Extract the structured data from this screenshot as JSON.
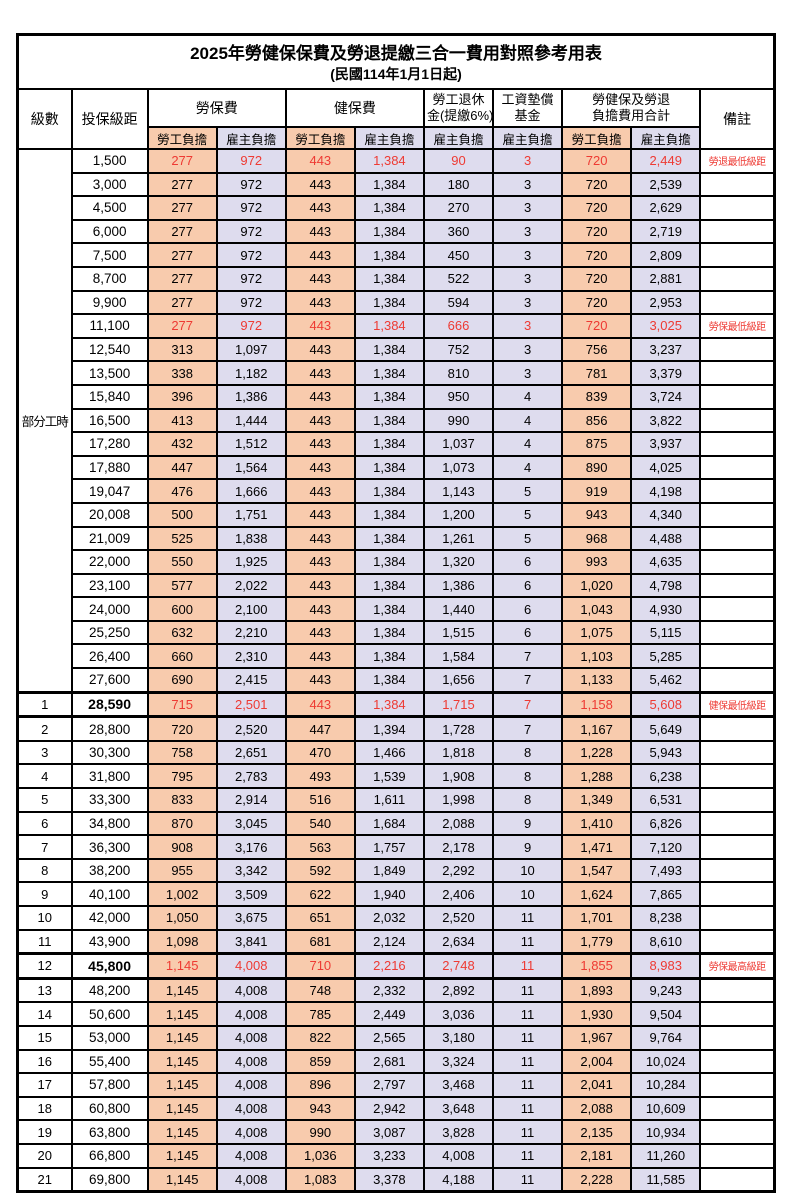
{
  "title": "2025年勞健保保費及勞退提繳三合一費用對照參考用表",
  "subtitle": "(民國114年1月1日起)",
  "header": {
    "level": "級數",
    "bracket": "投保級距",
    "labor_insurance": "勞保費",
    "health_insurance": "健保費",
    "pension_line1": "勞工退休",
    "pension_line2": "金(提繳6%)",
    "wage_fund_line1": "工資墊償",
    "wage_fund_line2": "基金",
    "total_line1": "勞健保及勞退",
    "total_line2": "負擔費用合計",
    "employee": "勞工負擔",
    "employer": "雇主負擔",
    "remark": "備註"
  },
  "part_time_label": "部分工時",
  "part_time_rowspan": 23,
  "colors": {
    "employee_bg": "#F8CBAD",
    "employer_bg": "#DEDCEE",
    "highlight_red": "#EE3A33",
    "border": "#000000"
  },
  "rows": [
    {
      "level": "",
      "v": [
        "1,500",
        "277",
        "972",
        "443",
        "1,384",
        "90",
        "3",
        "720",
        "2,449"
      ],
      "remark": "勞退最低級距",
      "red": true,
      "thick": false,
      "bold": false
    },
    {
      "level": "",
      "v": [
        "3,000",
        "277",
        "972",
        "443",
        "1,384",
        "180",
        "3",
        "720",
        "2,539"
      ],
      "remark": "",
      "red": false,
      "thick": false,
      "bold": false
    },
    {
      "level": "",
      "v": [
        "4,500",
        "277",
        "972",
        "443",
        "1,384",
        "270",
        "3",
        "720",
        "2,629"
      ],
      "remark": "",
      "red": false,
      "thick": false,
      "bold": false
    },
    {
      "level": "",
      "v": [
        "6,000",
        "277",
        "972",
        "443",
        "1,384",
        "360",
        "3",
        "720",
        "2,719"
      ],
      "remark": "",
      "red": false,
      "thick": false,
      "bold": false
    },
    {
      "level": "",
      "v": [
        "7,500",
        "277",
        "972",
        "443",
        "1,384",
        "450",
        "3",
        "720",
        "2,809"
      ],
      "remark": "",
      "red": false,
      "thick": false,
      "bold": false
    },
    {
      "level": "",
      "v": [
        "8,700",
        "277",
        "972",
        "443",
        "1,384",
        "522",
        "3",
        "720",
        "2,881"
      ],
      "remark": "",
      "red": false,
      "thick": false,
      "bold": false
    },
    {
      "level": "",
      "v": [
        "9,900",
        "277",
        "972",
        "443",
        "1,384",
        "594",
        "3",
        "720",
        "2,953"
      ],
      "remark": "",
      "red": false,
      "thick": false,
      "bold": false
    },
    {
      "level": "",
      "v": [
        "11,100",
        "277",
        "972",
        "443",
        "1,384",
        "666",
        "3",
        "720",
        "3,025"
      ],
      "remark": "勞保最低級距",
      "red": true,
      "thick": false,
      "bold": false
    },
    {
      "level": "",
      "v": [
        "12,540",
        "313",
        "1,097",
        "443",
        "1,384",
        "752",
        "3",
        "756",
        "3,237"
      ],
      "remark": "",
      "red": false,
      "thick": false,
      "bold": false
    },
    {
      "level": "",
      "v": [
        "13,500",
        "338",
        "1,182",
        "443",
        "1,384",
        "810",
        "3",
        "781",
        "3,379"
      ],
      "remark": "",
      "red": false,
      "thick": false,
      "bold": false
    },
    {
      "level": "",
      "v": [
        "15,840",
        "396",
        "1,386",
        "443",
        "1,384",
        "950",
        "4",
        "839",
        "3,724"
      ],
      "remark": "",
      "red": false,
      "thick": false,
      "bold": false
    },
    {
      "level": "",
      "v": [
        "16,500",
        "413",
        "1,444",
        "443",
        "1,384",
        "990",
        "4",
        "856",
        "3,822"
      ],
      "remark": "",
      "red": false,
      "thick": false,
      "bold": false
    },
    {
      "level": "",
      "v": [
        "17,280",
        "432",
        "1,512",
        "443",
        "1,384",
        "1,037",
        "4",
        "875",
        "3,937"
      ],
      "remark": "",
      "red": false,
      "thick": false,
      "bold": false
    },
    {
      "level": "",
      "v": [
        "17,880",
        "447",
        "1,564",
        "443",
        "1,384",
        "1,073",
        "4",
        "890",
        "4,025"
      ],
      "remark": "",
      "red": false,
      "thick": false,
      "bold": false
    },
    {
      "level": "",
      "v": [
        "19,047",
        "476",
        "1,666",
        "443",
        "1,384",
        "1,143",
        "5",
        "919",
        "4,198"
      ],
      "remark": "",
      "red": false,
      "thick": false,
      "bold": false
    },
    {
      "level": "",
      "v": [
        "20,008",
        "500",
        "1,751",
        "443",
        "1,384",
        "1,200",
        "5",
        "943",
        "4,340"
      ],
      "remark": "",
      "red": false,
      "thick": false,
      "bold": false
    },
    {
      "level": "",
      "v": [
        "21,009",
        "525",
        "1,838",
        "443",
        "1,384",
        "1,261",
        "5",
        "968",
        "4,488"
      ],
      "remark": "",
      "red": false,
      "thick": false,
      "bold": false
    },
    {
      "level": "",
      "v": [
        "22,000",
        "550",
        "1,925",
        "443",
        "1,384",
        "1,320",
        "6",
        "993",
        "4,635"
      ],
      "remark": "",
      "red": false,
      "thick": false,
      "bold": false
    },
    {
      "level": "",
      "v": [
        "23,100",
        "577",
        "2,022",
        "443",
        "1,384",
        "1,386",
        "6",
        "1,020",
        "4,798"
      ],
      "remark": "",
      "red": false,
      "thick": false,
      "bold": false
    },
    {
      "level": "",
      "v": [
        "24,000",
        "600",
        "2,100",
        "443",
        "1,384",
        "1,440",
        "6",
        "1,043",
        "4,930"
      ],
      "remark": "",
      "red": false,
      "thick": false,
      "bold": false
    },
    {
      "level": "",
      "v": [
        "25,250",
        "632",
        "2,210",
        "443",
        "1,384",
        "1,515",
        "6",
        "1,075",
        "5,115"
      ],
      "remark": "",
      "red": false,
      "thick": false,
      "bold": false
    },
    {
      "level": "",
      "v": [
        "26,400",
        "660",
        "2,310",
        "443",
        "1,384",
        "1,584",
        "7",
        "1,103",
        "5,285"
      ],
      "remark": "",
      "red": false,
      "thick": false,
      "bold": false
    },
    {
      "level": "",
      "v": [
        "27,600",
        "690",
        "2,415",
        "443",
        "1,384",
        "1,656",
        "7",
        "1,133",
        "5,462"
      ],
      "remark": "",
      "red": false,
      "thick": false,
      "bold": false
    },
    {
      "level": "1",
      "v": [
        "28,590",
        "715",
        "2,501",
        "443",
        "1,384",
        "1,715",
        "7",
        "1,158",
        "5,608"
      ],
      "remark": "健保最低級距",
      "red": true,
      "thick": true,
      "bold": true
    },
    {
      "level": "2",
      "v": [
        "28,800",
        "720",
        "2,520",
        "447",
        "1,394",
        "1,728",
        "7",
        "1,167",
        "5,649"
      ],
      "remark": "",
      "red": false,
      "thick": false,
      "bold": false
    },
    {
      "level": "3",
      "v": [
        "30,300",
        "758",
        "2,651",
        "470",
        "1,466",
        "1,818",
        "8",
        "1,228",
        "5,943"
      ],
      "remark": "",
      "red": false,
      "thick": false,
      "bold": false
    },
    {
      "level": "4",
      "v": [
        "31,800",
        "795",
        "2,783",
        "493",
        "1,539",
        "1,908",
        "8",
        "1,288",
        "6,238"
      ],
      "remark": "",
      "red": false,
      "thick": false,
      "bold": false
    },
    {
      "level": "5",
      "v": [
        "33,300",
        "833",
        "2,914",
        "516",
        "1,611",
        "1,998",
        "8",
        "1,349",
        "6,531"
      ],
      "remark": "",
      "red": false,
      "thick": false,
      "bold": false
    },
    {
      "level": "6",
      "v": [
        "34,800",
        "870",
        "3,045",
        "540",
        "1,684",
        "2,088",
        "9",
        "1,410",
        "6,826"
      ],
      "remark": "",
      "red": false,
      "thick": false,
      "bold": false
    },
    {
      "level": "7",
      "v": [
        "36,300",
        "908",
        "3,176",
        "563",
        "1,757",
        "2,178",
        "9",
        "1,471",
        "7,120"
      ],
      "remark": "",
      "red": false,
      "thick": false,
      "bold": false
    },
    {
      "level": "8",
      "v": [
        "38,200",
        "955",
        "3,342",
        "592",
        "1,849",
        "2,292",
        "10",
        "1,547",
        "7,493"
      ],
      "remark": "",
      "red": false,
      "thick": false,
      "bold": false
    },
    {
      "level": "9",
      "v": [
        "40,100",
        "1,002",
        "3,509",
        "622",
        "1,940",
        "2,406",
        "10",
        "1,624",
        "7,865"
      ],
      "remark": "",
      "red": false,
      "thick": false,
      "bold": false
    },
    {
      "level": "10",
      "v": [
        "42,000",
        "1,050",
        "3,675",
        "651",
        "2,032",
        "2,520",
        "11",
        "1,701",
        "8,238"
      ],
      "remark": "",
      "red": false,
      "thick": false,
      "bold": false
    },
    {
      "level": "11",
      "v": [
        "43,900",
        "1,098",
        "3,841",
        "681",
        "2,124",
        "2,634",
        "11",
        "1,779",
        "8,610"
      ],
      "remark": "",
      "red": false,
      "thick": false,
      "bold": false
    },
    {
      "level": "12",
      "v": [
        "45,800",
        "1,145",
        "4,008",
        "710",
        "2,216",
        "2,748",
        "11",
        "1,855",
        "8,983"
      ],
      "remark": "勞保最高級距",
      "red": true,
      "thick": true,
      "bold": true
    },
    {
      "level": "13",
      "v": [
        "48,200",
        "1,145",
        "4,008",
        "748",
        "2,332",
        "2,892",
        "11",
        "1,893",
        "9,243"
      ],
      "remark": "",
      "red": false,
      "thick": false,
      "bold": false
    },
    {
      "level": "14",
      "v": [
        "50,600",
        "1,145",
        "4,008",
        "785",
        "2,449",
        "3,036",
        "11",
        "1,930",
        "9,504"
      ],
      "remark": "",
      "red": false,
      "thick": false,
      "bold": false
    },
    {
      "level": "15",
      "v": [
        "53,000",
        "1,145",
        "4,008",
        "822",
        "2,565",
        "3,180",
        "11",
        "1,967",
        "9,764"
      ],
      "remark": "",
      "red": false,
      "thick": false,
      "bold": false
    },
    {
      "level": "16",
      "v": [
        "55,400",
        "1,145",
        "4,008",
        "859",
        "2,681",
        "3,324",
        "11",
        "2,004",
        "10,024"
      ],
      "remark": "",
      "red": false,
      "thick": false,
      "bold": false
    },
    {
      "level": "17",
      "v": [
        "57,800",
        "1,145",
        "4,008",
        "896",
        "2,797",
        "3,468",
        "11",
        "2,041",
        "10,284"
      ],
      "remark": "",
      "red": false,
      "thick": false,
      "bold": false
    },
    {
      "level": "18",
      "v": [
        "60,800",
        "1,145",
        "4,008",
        "943",
        "2,942",
        "3,648",
        "11",
        "2,088",
        "10,609"
      ],
      "remark": "",
      "red": false,
      "thick": false,
      "bold": false
    },
    {
      "level": "19",
      "v": [
        "63,800",
        "1,145",
        "4,008",
        "990",
        "3,087",
        "3,828",
        "11",
        "2,135",
        "10,934"
      ],
      "remark": "",
      "red": false,
      "thick": false,
      "bold": false
    },
    {
      "level": "20",
      "v": [
        "66,800",
        "1,145",
        "4,008",
        "1,036",
        "3,233",
        "4,008",
        "11",
        "2,181",
        "11,260"
      ],
      "remark": "",
      "red": false,
      "thick": false,
      "bold": false
    },
    {
      "level": "21",
      "v": [
        "69,800",
        "1,145",
        "4,008",
        "1,083",
        "3,378",
        "4,188",
        "11",
        "2,228",
        "11,585"
      ],
      "remark": "",
      "red": false,
      "thick": false,
      "bold": false
    }
  ],
  "cell_classes": [
    "bracket",
    "emp",
    "er",
    "emp",
    "er",
    "er",
    "er",
    "emp",
    "er"
  ]
}
